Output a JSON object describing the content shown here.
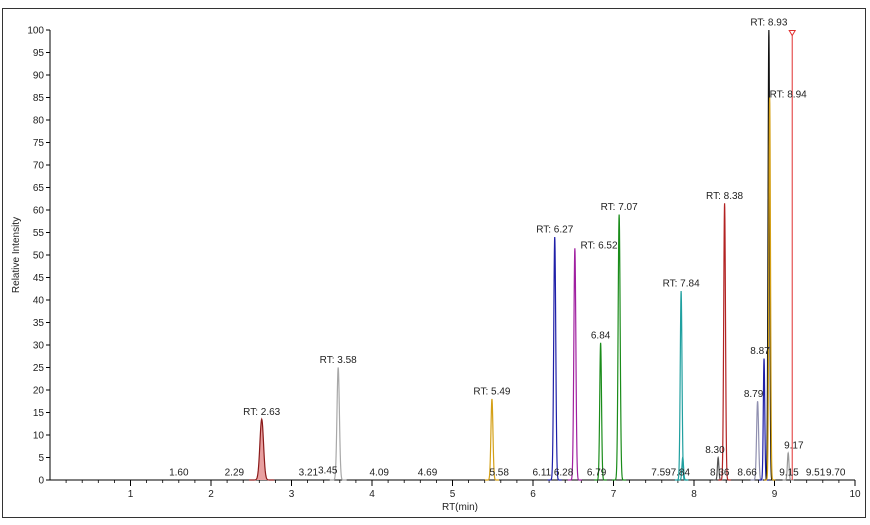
{
  "chart_data": {
    "type": "line",
    "title": "",
    "xlabel": "RT(min)",
    "ylabel": "Relative Intensity",
    "xlim": [
      0,
      10
    ],
    "ylim": [
      0,
      100
    ],
    "x_ticks": [
      "1",
      "2",
      "3",
      "4",
      "5",
      "6",
      "7",
      "8",
      "9",
      "10"
    ],
    "y_ticks": [
      "0",
      "5",
      "10",
      "15",
      "20",
      "25",
      "30",
      "35",
      "40",
      "45",
      "50",
      "55",
      "60",
      "65",
      "70",
      "75",
      "80",
      "85",
      "90",
      "95",
      "100"
    ],
    "grid": false,
    "legend": "none",
    "peaks": [
      {
        "rt": 2.63,
        "height": 13.5,
        "width": 0.045,
        "color": "#8b1a1a",
        "fill": "#e8a0a0",
        "filled": true
      },
      {
        "rt": 3.58,
        "height": 25,
        "width": 0.03,
        "color": "#a8a8a8",
        "filled": false
      },
      {
        "rt": 5.49,
        "height": 18,
        "width": 0.025,
        "color": "#d4a017",
        "filled": false
      },
      {
        "rt": 6.27,
        "height": 54,
        "width": 0.025,
        "color": "#1f1fa8",
        "filled": false
      },
      {
        "rt": 6.52,
        "height": 51.5,
        "width": 0.025,
        "color": "#a020a0",
        "filled": false
      },
      {
        "rt": 6.84,
        "height": 30.5,
        "width": 0.022,
        "color": "#1a8c1a",
        "filled": false
      },
      {
        "rt": 7.07,
        "height": 59,
        "width": 0.025,
        "color": "#1a8c1a",
        "filled": false
      },
      {
        "rt": 7.84,
        "height": 42,
        "width": 0.022,
        "color": "#20a0a0",
        "filled": false
      },
      {
        "rt": 7.86,
        "height": 5,
        "width": 0.02,
        "color": "#20a0a0",
        "filled": false
      },
      {
        "rt": 8.3,
        "height": 5,
        "width": 0.018,
        "color": "#555555",
        "filled": false
      },
      {
        "rt": 8.38,
        "height": 61.5,
        "width": 0.022,
        "color": "#b22222",
        "filled": false
      },
      {
        "rt": 8.79,
        "height": 17.5,
        "width": 0.025,
        "color": "#9090b0",
        "filled": false
      },
      {
        "rt": 8.87,
        "height": 27,
        "width": 0.018,
        "color": "#1f1fa8",
        "filled": false
      },
      {
        "rt": 8.93,
        "height": 100,
        "width": 0.02,
        "color": "#111111",
        "filled": false
      },
      {
        "rt": 8.94,
        "height": 85,
        "width": 0.02,
        "color": "#d4a017",
        "filled": false
      },
      {
        "rt": 9.17,
        "height": 6,
        "width": 0.02,
        "color": "#999999",
        "filled": false
      },
      {
        "rt": 9.22,
        "height": 99,
        "width": 0.004,
        "color": "#e03030",
        "filled": false,
        "marker": true
      }
    ],
    "labels": [
      {
        "text": "RT: 2.63",
        "x": 2.63,
        "y": 14.5
      },
      {
        "text": "RT: 3.58",
        "x": 3.58,
        "y": 26
      },
      {
        "text": "RT: 5.49",
        "x": 5.49,
        "y": 19
      },
      {
        "text": "RT: 6.27",
        "x": 6.27,
        "y": 55
      },
      {
        "text": "RT: 6.52",
        "x": 6.82,
        "y": 51.5
      },
      {
        "text": "6.84",
        "x": 6.84,
        "y": 31.5
      },
      {
        "text": "RT: 7.07",
        "x": 7.07,
        "y": 60
      },
      {
        "text": "RT: 7.84",
        "x": 7.84,
        "y": 43
      },
      {
        "text": "RT: 8.38",
        "x": 8.38,
        "y": 62.5
      },
      {
        "text": "8.87",
        "x": 8.82,
        "y": 28
      },
      {
        "text": "8.79",
        "x": 8.74,
        "y": 18.5
      },
      {
        "text": "RT: 8.93",
        "x": 8.93,
        "y": 101
      },
      {
        "text": "RT: 8.94",
        "x": 9.17,
        "y": 85
      },
      {
        "text": "8.30",
        "x": 8.26,
        "y": 6
      },
      {
        "text": "9.17",
        "x": 9.24,
        "y": 7
      },
      {
        "text": "1.60",
        "x": 1.6,
        "y": 1
      },
      {
        "text": "2.29",
        "x": 2.29,
        "y": 1
      },
      {
        "text": "3.21",
        "x": 3.21,
        "y": 1
      },
      {
        "text": "3.45",
        "x": 3.45,
        "y": 1.5
      },
      {
        "text": "4.09",
        "x": 4.09,
        "y": 1
      },
      {
        "text": "4.69",
        "x": 4.69,
        "y": 1
      },
      {
        "text": "5.58",
        "x": 5.58,
        "y": 1
      },
      {
        "text": "6.11",
        "x": 6.11,
        "y": 1
      },
      {
        "text": "6.28",
        "x": 6.38,
        "y": 1
      },
      {
        "text": "6.79",
        "x": 6.79,
        "y": 1
      },
      {
        "text": "7.59",
        "x": 7.59,
        "y": 1
      },
      {
        "text": "7.84",
        "x": 7.83,
        "y": 1
      },
      {
        "text": "8.36",
        "x": 8.32,
        "y": 1
      },
      {
        "text": "8.66",
        "x": 8.66,
        "y": 1
      },
      {
        "text": "9.15",
        "x": 9.18,
        "y": 1
      },
      {
        "text": "9.51",
        "x": 9.51,
        "y": 1
      },
      {
        "text": "9.70",
        "x": 9.76,
        "y": 1
      }
    ]
  }
}
